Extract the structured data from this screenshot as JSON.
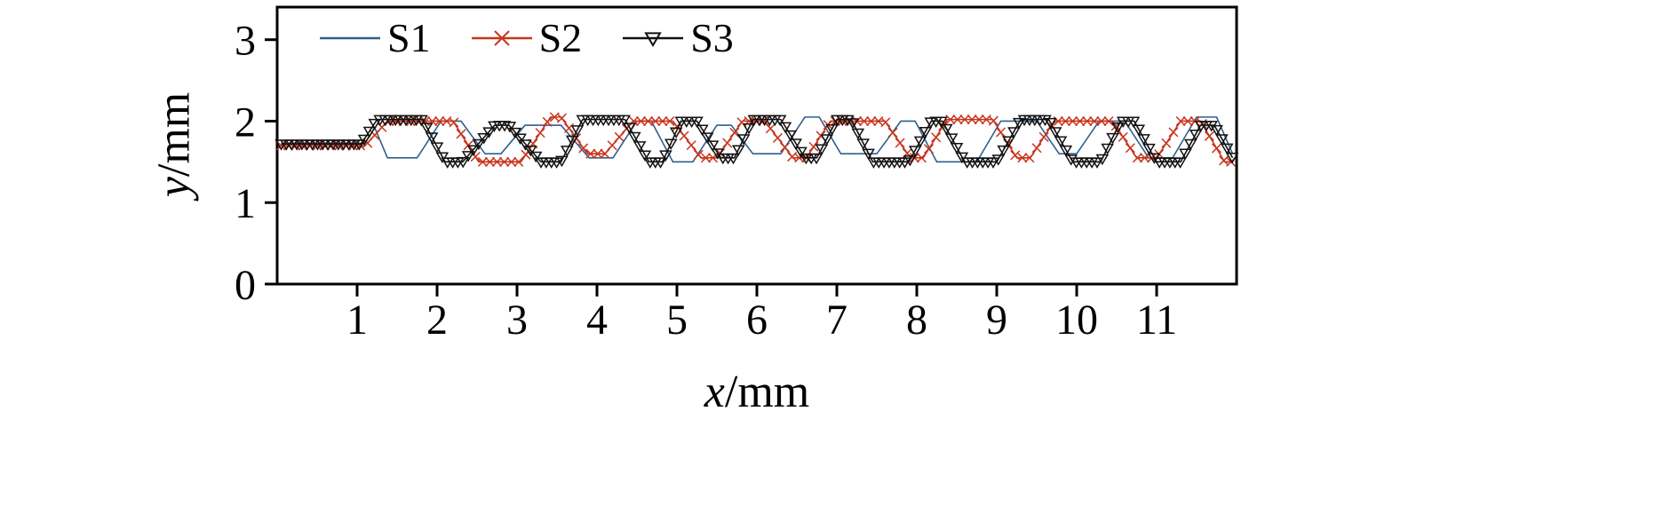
{
  "chart_data": {
    "type": "line",
    "xlabel_var": "x",
    "xlabel_unit": "/mm",
    "ylabel_var": "y",
    "ylabel_unit": "/mm",
    "xlim": [
      0,
      12
    ],
    "ylim": [
      0,
      3.4
    ],
    "x_ticks": [
      1,
      2,
      3,
      4,
      5,
      6,
      7,
      8,
      9,
      10,
      11
    ],
    "y_ticks": [
      0,
      1,
      2,
      3
    ],
    "grid": false,
    "legend_position": "top-left-inside",
    "axis_color": "#000000",
    "background": "#ffffff",
    "series": [
      {
        "name": "S1",
        "color": "#2f5f8f",
        "marker": "none",
        "line_width": 1.6,
        "marker_step": 0,
        "points": [
          [
            0.05,
            1.73
          ],
          [
            1.1,
            1.73
          ],
          [
            1.22,
            1.92
          ],
          [
            1.38,
            1.55
          ],
          [
            1.75,
            1.55
          ],
          [
            2.05,
            2.0
          ],
          [
            2.3,
            2.0
          ],
          [
            2.6,
            1.6
          ],
          [
            2.8,
            1.6
          ],
          [
            3.1,
            1.95
          ],
          [
            3.55,
            1.95
          ],
          [
            3.9,
            1.55
          ],
          [
            4.2,
            1.55
          ],
          [
            4.5,
            2.0
          ],
          [
            4.68,
            2.0
          ],
          [
            4.95,
            1.5
          ],
          [
            5.2,
            1.5
          ],
          [
            5.5,
            1.95
          ],
          [
            5.68,
            1.95
          ],
          [
            5.95,
            1.6
          ],
          [
            6.3,
            1.6
          ],
          [
            6.6,
            2.05
          ],
          [
            6.78,
            2.05
          ],
          [
            7.05,
            1.6
          ],
          [
            7.5,
            1.6
          ],
          [
            7.8,
            2.0
          ],
          [
            7.98,
            2.0
          ],
          [
            8.25,
            1.5
          ],
          [
            8.75,
            1.5
          ],
          [
            9.05,
            2.0
          ],
          [
            9.5,
            2.0
          ],
          [
            9.78,
            1.6
          ],
          [
            10.0,
            1.6
          ],
          [
            10.28,
            2.0
          ],
          [
            10.6,
            2.0
          ],
          [
            10.9,
            1.55
          ],
          [
            11.2,
            1.55
          ],
          [
            11.5,
            2.05
          ],
          [
            11.75,
            2.05
          ],
          [
            11.95,
            1.6
          ]
        ]
      },
      {
        "name": "S2",
        "color": "#c8341c",
        "marker": "x",
        "line_width": 1.6,
        "marker_step": 0.09,
        "points": [
          [
            0.05,
            1.7
          ],
          [
            1.1,
            1.7
          ],
          [
            1.38,
            2.0
          ],
          [
            2.2,
            2.0
          ],
          [
            2.52,
            1.5
          ],
          [
            3.05,
            1.5
          ],
          [
            3.42,
            2.05
          ],
          [
            3.55,
            2.05
          ],
          [
            3.88,
            1.6
          ],
          [
            4.1,
            1.6
          ],
          [
            4.45,
            2.0
          ],
          [
            4.95,
            2.0
          ],
          [
            5.3,
            1.55
          ],
          [
            5.5,
            1.55
          ],
          [
            5.82,
            2.0
          ],
          [
            6.1,
            2.0
          ],
          [
            6.45,
            1.55
          ],
          [
            6.62,
            1.55
          ],
          [
            6.92,
            2.0
          ],
          [
            7.6,
            2.0
          ],
          [
            7.92,
            1.55
          ],
          [
            8.08,
            1.55
          ],
          [
            8.38,
            2.02
          ],
          [
            8.95,
            2.02
          ],
          [
            9.25,
            1.55
          ],
          [
            9.42,
            1.55
          ],
          [
            9.72,
            2.0
          ],
          [
            10.45,
            2.0
          ],
          [
            10.75,
            1.55
          ],
          [
            11.0,
            1.55
          ],
          [
            11.3,
            2.0
          ],
          [
            11.55,
            2.0
          ],
          [
            11.85,
            1.5
          ],
          [
            11.95,
            1.5
          ]
        ]
      },
      {
        "name": "S3",
        "color": "#111111",
        "marker": "triangle-down",
        "line_width": 1.6,
        "marker_step": 0.065,
        "points": [
          [
            0.05,
            1.72
          ],
          [
            1.05,
            1.72
          ],
          [
            1.25,
            2.02
          ],
          [
            1.82,
            2.02
          ],
          [
            2.1,
            1.5
          ],
          [
            2.32,
            1.5
          ],
          [
            2.72,
            1.95
          ],
          [
            2.9,
            1.95
          ],
          [
            3.3,
            1.5
          ],
          [
            3.55,
            1.5
          ],
          [
            3.82,
            2.02
          ],
          [
            4.35,
            2.02
          ],
          [
            4.65,
            1.5
          ],
          [
            4.82,
            1.5
          ],
          [
            5.05,
            2.0
          ],
          [
            5.25,
            2.0
          ],
          [
            5.55,
            1.55
          ],
          [
            5.72,
            1.55
          ],
          [
            5.95,
            2.02
          ],
          [
            6.3,
            2.02
          ],
          [
            6.6,
            1.55
          ],
          [
            6.75,
            1.55
          ],
          [
            7.0,
            2.02
          ],
          [
            7.18,
            2.02
          ],
          [
            7.45,
            1.5
          ],
          [
            7.9,
            1.5
          ],
          [
            8.18,
            2.0
          ],
          [
            8.32,
            2.0
          ],
          [
            8.6,
            1.5
          ],
          [
            9.0,
            1.5
          ],
          [
            9.3,
            2.02
          ],
          [
            9.65,
            2.02
          ],
          [
            9.95,
            1.5
          ],
          [
            10.3,
            1.5
          ],
          [
            10.55,
            2.0
          ],
          [
            10.72,
            2.0
          ],
          [
            11.0,
            1.5
          ],
          [
            11.3,
            1.5
          ],
          [
            11.55,
            1.95
          ],
          [
            11.72,
            1.95
          ],
          [
            11.95,
            1.55
          ]
        ]
      }
    ]
  }
}
